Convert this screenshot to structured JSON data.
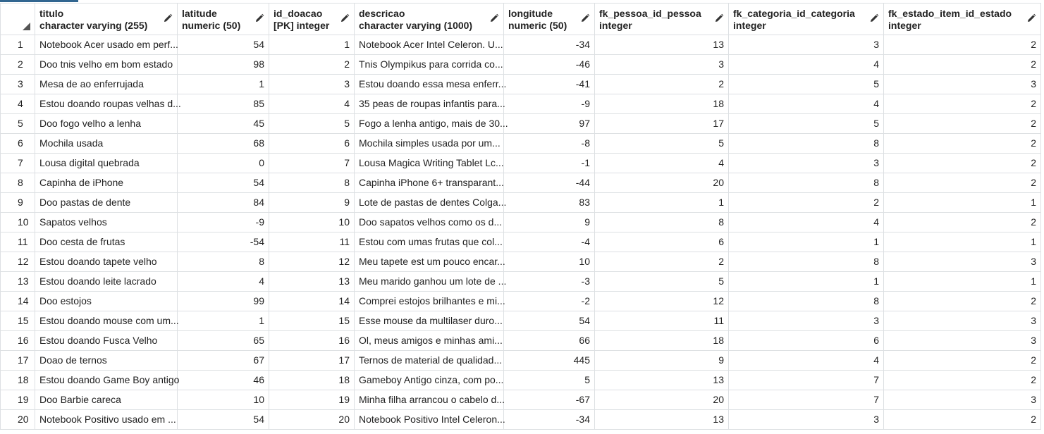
{
  "columns": [
    {
      "name": "titulo",
      "type": "character varying (255)",
      "align": "left"
    },
    {
      "name": "latitude",
      "type": "numeric (50)",
      "align": "right"
    },
    {
      "name": "id_doacao",
      "type": "[PK] integer",
      "align": "right"
    },
    {
      "name": "descricao",
      "type": "character varying (1000)",
      "align": "left"
    },
    {
      "name": "longitude",
      "type": "numeric (50)",
      "align": "right"
    },
    {
      "name": "fk_pessoa_id_pessoa",
      "type": "integer",
      "align": "right"
    },
    {
      "name": "fk_categoria_id_categoria",
      "type": "integer",
      "align": "right"
    },
    {
      "name": "fk_estado_item_id_estado",
      "type": "integer",
      "align": "right"
    }
  ],
  "rows": [
    {
      "rownum": "1",
      "cells": [
        "Notebook Acer usado em perf...",
        "54",
        "1",
        "Notebook Acer Intel Celeron. U...",
        "-34",
        "13",
        "3",
        "2"
      ]
    },
    {
      "rownum": "2",
      "cells": [
        "Doo tnis velho em bom estado",
        "98",
        "2",
        "Tnis Olympikus para corrida co...",
        "-46",
        "3",
        "4",
        "2"
      ]
    },
    {
      "rownum": "3",
      "cells": [
        "Mesa de ao enferrujada",
        "1",
        "3",
        "Estou doando essa mesa enferr...",
        "-41",
        "2",
        "5",
        "3"
      ]
    },
    {
      "rownum": "4",
      "cells": [
        "Estou doando roupas velhas d...",
        "85",
        "4",
        "35 peas de roupas infantis para...",
        "-9",
        "18",
        "4",
        "2"
      ]
    },
    {
      "rownum": "5",
      "cells": [
        "Doo fogo velho a lenha",
        "45",
        "5",
        "Fogo a lenha antigo, mais de 30...",
        "97",
        "17",
        "5",
        "2"
      ]
    },
    {
      "rownum": "6",
      "cells": [
        "Mochila usada",
        "68",
        "6",
        "Mochila simples usada por um...",
        "-8",
        "5",
        "8",
        "2"
      ]
    },
    {
      "rownum": "7",
      "cells": [
        "Lousa digital quebrada",
        "0",
        "7",
        "Lousa Magica Writing Tablet Lc...",
        "-1",
        "4",
        "3",
        "2"
      ]
    },
    {
      "rownum": "8",
      "cells": [
        "Capinha de iPhone",
        "54",
        "8",
        "Capinha iPhone 6+ transparant...",
        "-44",
        "20",
        "8",
        "2"
      ]
    },
    {
      "rownum": "9",
      "cells": [
        "Doo pastas de dente",
        "84",
        "9",
        "Lote de pastas de dentes Colga...",
        "83",
        "1",
        "2",
        "1"
      ]
    },
    {
      "rownum": "10",
      "cells": [
        "Sapatos velhos",
        "-9",
        "10",
        "Doo sapatos velhos como os d...",
        "9",
        "8",
        "4",
        "2"
      ]
    },
    {
      "rownum": "11",
      "cells": [
        "Doo cesta de frutas",
        "-54",
        "11",
        "Estou com umas frutas que col...",
        "-4",
        "6",
        "1",
        "1"
      ]
    },
    {
      "rownum": "12",
      "cells": [
        "Estou doando tapete velho",
        "8",
        "12",
        "Meu tapete est um pouco encar...",
        "10",
        "2",
        "8",
        "3"
      ]
    },
    {
      "rownum": "13",
      "cells": [
        "Estou doando leite lacrado",
        "4",
        "13",
        "Meu marido ganhou um lote de ...",
        "-3",
        "5",
        "1",
        "1"
      ]
    },
    {
      "rownum": "14",
      "cells": [
        "Doo estojos",
        "99",
        "14",
        "Comprei estojos brilhantes e mi...",
        "-2",
        "12",
        "8",
        "2"
      ]
    },
    {
      "rownum": "15",
      "cells": [
        "Estou doando mouse com um...",
        "1",
        "15",
        "Esse mouse da multilaser duro...",
        "54",
        "11",
        "3",
        "3"
      ]
    },
    {
      "rownum": "16",
      "cells": [
        "Estou doando Fusca Velho",
        "65",
        "16",
        "Ol, meus amigos e minhas ami...",
        "66",
        "18",
        "6",
        "3"
      ]
    },
    {
      "rownum": "17",
      "cells": [
        "Doao de ternos",
        "67",
        "17",
        "Ternos de material de qualidad...",
        "445",
        "9",
        "4",
        "2"
      ]
    },
    {
      "rownum": "18",
      "cells": [
        "Estou doando Game Boy antigo",
        "46",
        "18",
        "Gameboy Antigo cinza, com po...",
        "5",
        "13",
        "7",
        "2"
      ]
    },
    {
      "rownum": "19",
      "cells": [
        "Doo Barbie careca",
        "10",
        "19",
        "Minha filha arrancou o cabelo d...",
        "-67",
        "20",
        "7",
        "3"
      ]
    },
    {
      "rownum": "20",
      "cells": [
        "Notebook Positivo usado em ...",
        "54",
        "20",
        "Notebook Positivo Intel Celeron...",
        "-34",
        "13",
        "3",
        "2"
      ]
    }
  ],
  "icons": {
    "column_edit": "pencil-icon",
    "select_all": "select-all-corner-icon"
  },
  "colors": {
    "accent": "#326690",
    "grid_line": "#dde0e3",
    "text": "#222222"
  }
}
